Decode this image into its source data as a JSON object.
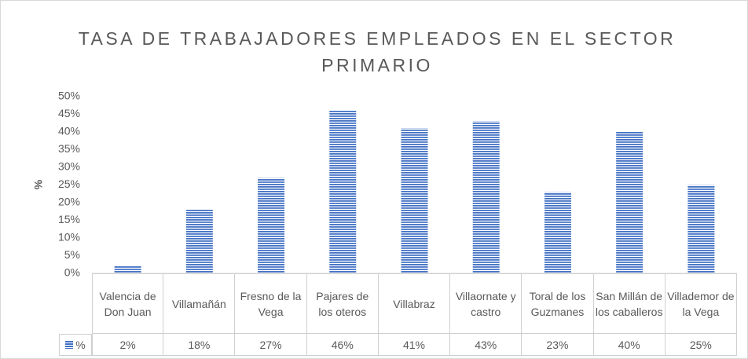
{
  "chart_data": {
    "type": "bar",
    "title": "TASA DE TRABAJADORES EMPLEADOS EN EL SECTOR PRIMARIO",
    "y_label": "%",
    "categories": [
      "Valencia de Don Juan",
      "Villamañán",
      "Fresno de la Vega",
      "Pajares de los oteros",
      "Villabraz",
      "Villaornate y castro",
      "Toral de los Guzmanes",
      "San Millán de los caballeros",
      "Villademor de la Vega"
    ],
    "series": [
      {
        "name": "%",
        "color": "#4472c4",
        "values": [
          2,
          18,
          27,
          46,
          41,
          43,
          23,
          40,
          25
        ],
        "value_labels": [
          "2%",
          "18%",
          "27%",
          "46%",
          "41%",
          "43%",
          "23%",
          "40%",
          "25%"
        ]
      }
    ],
    "ylim": [
      0,
      50
    ],
    "yticks": [
      {
        "value": 0,
        "label": "0%"
      },
      {
        "value": 5,
        "label": "5%"
      },
      {
        "value": 10,
        "label": "10%"
      },
      {
        "value": 15,
        "label": "15%"
      },
      {
        "value": 20,
        "label": "20%"
      },
      {
        "value": 25,
        "label": "25%"
      },
      {
        "value": 30,
        "label": "30%"
      },
      {
        "value": 35,
        "label": "35%"
      },
      {
        "value": 40,
        "label": "40%"
      },
      {
        "value": 45,
        "label": "45%"
      },
      {
        "value": 50,
        "label": "50%"
      }
    ],
    "grid": false
  }
}
